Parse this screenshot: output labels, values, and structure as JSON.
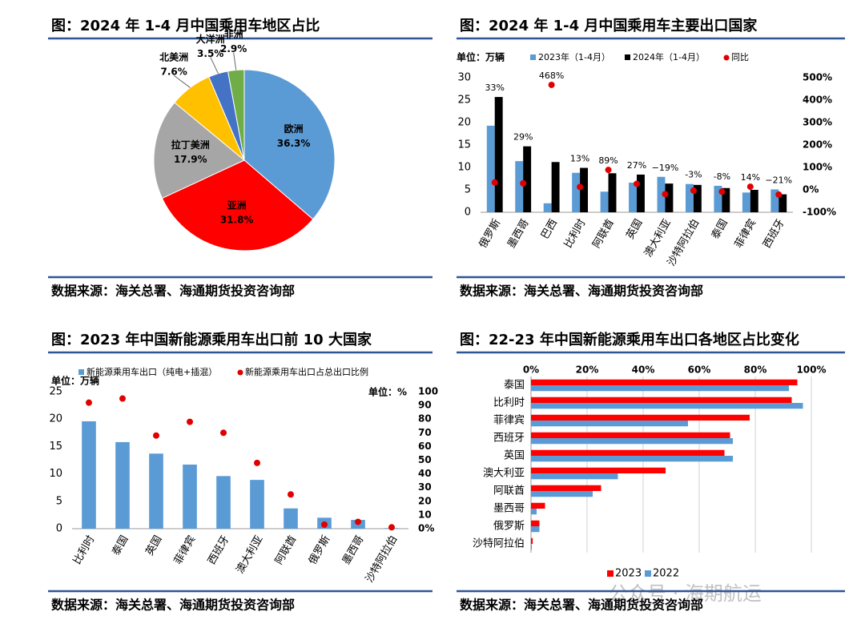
{
  "chart_data": [
    {
      "type": "pie",
      "title": "图：2024 年 1-4 月中国乘用车地区占比",
      "categories": [
        "欧洲",
        "亚洲",
        "拉丁美洲",
        "北美洲",
        "大洋洲",
        "非洲"
      ],
      "values": [
        36.3,
        31.8,
        17.9,
        7.6,
        3.5,
        2.9
      ],
      "value_labels": [
        "36.3%",
        "31.8%",
        "17.9%",
        "7.6%",
        "3.5%",
        "2.9%"
      ],
      "colors": [
        "#5b9bd5",
        "#ff0000",
        "#a6a6a6",
        "#ffc000",
        "#4472c4",
        "#70ad47"
      ],
      "source": "数据来源：海关总署、海通期货投资咨询部"
    },
    {
      "type": "bar",
      "title": "图：2024 年 1-4 月中国乘用车主要出口国家",
      "unit": "单位：万辆",
      "categories": [
        "俄罗斯",
        "墨西哥",
        "巴西",
        "比利时",
        "阿联酋",
        "英国",
        "澳大利亚",
        "沙特阿拉伯",
        "泰国",
        "菲律宾",
        "西班牙"
      ],
      "series": [
        {
          "name": "2023年（1-4月）",
          "color": "#5b9bd5",
          "values": [
            19.3,
            11.4,
            2.0,
            8.8,
            4.6,
            6.6,
            7.9,
            6.3,
            5.9,
            4.4,
            5.1
          ]
        },
        {
          "name": "2024年（1-4月）",
          "color": "#000000",
          "values": [
            25.7,
            14.7,
            11.2,
            9.9,
            8.7,
            8.4,
            6.4,
            6.1,
            5.4,
            5.0,
            4.0
          ]
        },
        {
          "name": "同比",
          "color": "#e00000",
          "axis": "y2",
          "values": [
            33,
            29,
            468,
            13,
            89,
            27,
            -19,
            -3,
            -8,
            14,
            -21
          ],
          "value_labels": [
            "33%",
            "29%",
            "468%",
            "13%",
            "89%",
            "27%",
            "−19%",
            "-3%",
            "-8%",
            "14%",
            "−21%"
          ]
        }
      ],
      "ylim": [
        0,
        30
      ],
      "yticks": [
        0,
        5,
        10,
        15,
        20,
        25,
        30
      ],
      "y2lim": [
        -100,
        500
      ],
      "y2ticks": [
        {
          "value": -100,
          "label": "-100%"
        },
        {
          "value": 0,
          "label": "0%"
        },
        {
          "value": 100,
          "label": "100%"
        },
        {
          "value": 200,
          "label": "200%"
        },
        {
          "value": 300,
          "label": "300%"
        },
        {
          "value": 400,
          "label": "400%"
        },
        {
          "value": 500,
          "label": "500%"
        }
      ],
      "source": "数据来源：海关总署、海通期货投资咨询部"
    },
    {
      "type": "bar",
      "title": "图：2023 年中国新能源乘用车出口前 10 大国家",
      "unit": "单位：万辆",
      "y2_unit": "单位：%",
      "categories": [
        "比利时",
        "泰国",
        "英国",
        "菲律宾",
        "西班牙",
        "澳大利亚",
        "阿联酋",
        "俄罗斯",
        "墨西哥",
        "沙特阿拉伯"
      ],
      "series": [
        {
          "name": "新能源乘用车出口（纯电+插混）",
          "color": "#5b9bd5",
          "values": [
            19.6,
            15.8,
            13.7,
            11.7,
            9.6,
            8.9,
            3.7,
            2.0,
            1.6,
            0.1
          ]
        },
        {
          "name": "新能源乘用车出口占总出口比例",
          "color": "#e00000",
          "axis": "y2",
          "values": [
            92,
            95,
            68,
            78,
            70,
            48,
            25,
            3,
            5,
            1
          ]
        }
      ],
      "ylim": [
        0,
        25
      ],
      "yticks": [
        0,
        5,
        10,
        15,
        20,
        25
      ],
      "y2lim": [
        0,
        100
      ],
      "y2ticks": [
        {
          "value": 0,
          "label": "0%"
        },
        10,
        20,
        30,
        40,
        50,
        60,
        70,
        80,
        90,
        100
      ],
      "source": "数据来源：海关总署、海通期货投资咨询部"
    },
    {
      "type": "barh",
      "title": "图：22-23 年中国新能源乘用车出口各地区占比变化",
      "categories": [
        "泰国",
        "比利时",
        "菲律宾",
        "西班牙",
        "英国",
        "澳大利亚",
        "阿联酋",
        "墨西哥",
        "俄罗斯",
        "沙特阿拉伯"
      ],
      "series": [
        {
          "name": "2023",
          "color": "#ff0000",
          "values": [
            95,
            93,
            78,
            71,
            69,
            48,
            25,
            5,
            3,
            0.6
          ]
        },
        {
          "name": "2022",
          "color": "#5b9bd5",
          "values": [
            92,
            97,
            56,
            72,
            72,
            31,
            22,
            2,
            3,
            0.3
          ]
        }
      ],
      "xlim": [
        0,
        100
      ],
      "xticks": [
        {
          "value": 0,
          "label": "0%"
        },
        {
          "value": 20,
          "label": "20%"
        },
        {
          "value": 40,
          "label": "40%"
        },
        {
          "value": 60,
          "label": "60%"
        },
        {
          "value": 80,
          "label": "80%"
        },
        {
          "value": 100,
          "label": "100%"
        }
      ],
      "grid": true,
      "source": "数据来源：海关总署、海通期货投资咨询部"
    }
  ],
  "watermark": "公众号 · 海期航运"
}
